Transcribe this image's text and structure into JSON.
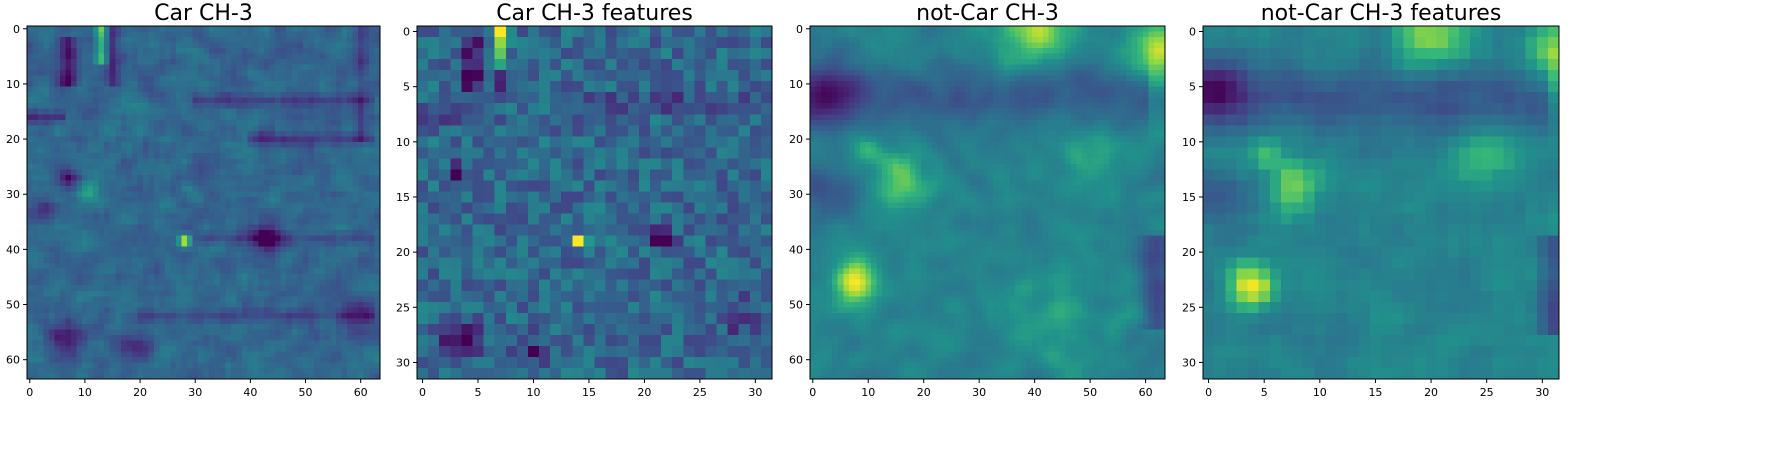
{
  "chart_data": [
    {
      "type": "heatmap",
      "title": "Car CH-3",
      "grid_size": 64,
      "xticks": [
        0,
        10,
        20,
        30,
        40,
        50,
        60
      ],
      "yticks": [
        0,
        10,
        20,
        30,
        40,
        50,
        60
      ],
      "xlim": [
        0,
        64
      ],
      "ylim": [
        64,
        0
      ],
      "colormap": "viridis",
      "seed": 11,
      "smooth": 1,
      "contrast": 1.0,
      "base": 0.42,
      "features": [
        {
          "kind": "vline",
          "x": 7,
          "y0": 2,
          "y1": 10,
          "w": 1.2,
          "v": -0.35
        },
        {
          "kind": "vline",
          "x": 13,
          "y0": 0,
          "y1": 6,
          "w": 0.8,
          "v": 0.35
        },
        {
          "kind": "vline",
          "x": 15,
          "y0": 0,
          "y1": 10,
          "w": 0.8,
          "v": -0.25
        },
        {
          "kind": "hline",
          "y": 13,
          "x0": 30,
          "x1": 62,
          "w": 0.8,
          "v": -0.2
        },
        {
          "kind": "hline",
          "y": 16,
          "x0": 0,
          "x1": 6,
          "w": 0.8,
          "v": -0.3
        },
        {
          "kind": "hline",
          "y": 20,
          "x0": 40,
          "x1": 62,
          "w": 0.8,
          "v": -0.2
        },
        {
          "kind": "hline",
          "y": 38,
          "x0": 30,
          "x1": 62,
          "w": 0.8,
          "v": -0.15
        },
        {
          "kind": "hline",
          "y": 52,
          "x0": 20,
          "x1": 62,
          "w": 0.8,
          "v": -0.15
        },
        {
          "kind": "vline",
          "x": 60,
          "y0": 0,
          "y1": 20,
          "w": 0.8,
          "v": -0.15
        },
        {
          "kind": "blob",
          "x": 7,
          "y": 27,
          "r": 1.2,
          "v": -0.45
        },
        {
          "kind": "blob",
          "x": 28,
          "y": 38.5,
          "r": 0.8,
          "v": 0.55
        },
        {
          "kind": "blob",
          "x": 43,
          "y": 38,
          "r": 2,
          "v": -0.4
        },
        {
          "kind": "blob",
          "x": 7,
          "y": 56,
          "r": 2.5,
          "v": -0.35
        },
        {
          "kind": "blob",
          "x": 3,
          "y": 33,
          "r": 1.5,
          "v": -0.25
        },
        {
          "kind": "blob",
          "x": 20,
          "y": 58,
          "r": 2,
          "v": -0.25
        },
        {
          "kind": "blob",
          "x": 11,
          "y": 30,
          "r": 1.5,
          "v": 0.25
        },
        {
          "kind": "blob",
          "x": 60,
          "y": 52,
          "r": 3,
          "v": -0.2
        }
      ]
    },
    {
      "type": "heatmap",
      "title": "Car CH-3 features",
      "grid_size": 32,
      "xticks": [
        0,
        5,
        10,
        15,
        20,
        25,
        30
      ],
      "yticks": [
        0,
        5,
        10,
        15,
        20,
        25,
        30
      ],
      "xlim": [
        0,
        32
      ],
      "ylim": [
        32,
        0
      ],
      "colormap": "viridis",
      "seed": 23,
      "smooth": 0,
      "contrast": 1.15,
      "base": 0.42,
      "features": [
        {
          "kind": "vline",
          "x": 4.5,
          "y0": 1,
          "y1": 5,
          "w": 0.6,
          "v": -0.4
        },
        {
          "kind": "vline",
          "x": 7,
          "y0": 0,
          "y1": 3,
          "w": 0.5,
          "v": 0.45
        },
        {
          "kind": "vline",
          "x": 7,
          "y0": 3,
          "y1": 6,
          "w": 0.5,
          "v": -0.25
        },
        {
          "kind": "hline",
          "y": 6.5,
          "x0": 14,
          "x1": 31,
          "w": 0.5,
          "v": -0.2
        },
        {
          "kind": "hline",
          "y": 8,
          "x0": 0,
          "x1": 3,
          "w": 0.5,
          "v": -0.3
        },
        {
          "kind": "blob",
          "x": 3,
          "y": 13,
          "r": 0.6,
          "v": -0.45
        },
        {
          "kind": "blob",
          "x": 14,
          "y": 19,
          "r": 0.5,
          "v": 0.6
        },
        {
          "kind": "blob",
          "x": 21.5,
          "y": 18.5,
          "r": 0.8,
          "v": -0.45
        },
        {
          "kind": "blob",
          "x": 3.5,
          "y": 28,
          "r": 1.2,
          "v": -0.45
        },
        {
          "kind": "blob",
          "x": 10,
          "y": 29,
          "r": 1,
          "v": -0.3
        },
        {
          "kind": "blob",
          "x": 2,
          "y": 8.5,
          "r": 0.5,
          "v": 0.35
        },
        {
          "kind": "blob",
          "x": 29,
          "y": 26,
          "r": 1.5,
          "v": -0.2
        }
      ]
    },
    {
      "type": "heatmap",
      "title": "not-Car CH-3",
      "grid_size": 64,
      "xticks": [
        0,
        10,
        20,
        30,
        40,
        50,
        60
      ],
      "yticks": [
        0,
        10,
        20,
        30,
        40,
        50,
        60
      ],
      "xlim": [
        0,
        64
      ],
      "ylim": [
        64,
        0
      ],
      "colormap": "viridis",
      "seed": 37,
      "smooth": 2,
      "contrast": 0.6,
      "base": 0.55,
      "features": [
        {
          "kind": "hline",
          "y": 12,
          "x0": 0,
          "x1": 60,
          "w": 4,
          "v": -0.2
        },
        {
          "kind": "blob",
          "x": 2,
          "y": 12,
          "r": 4,
          "v": -0.35
        },
        {
          "kind": "blob",
          "x": 2,
          "y": 30,
          "r": 4,
          "v": -0.2
        },
        {
          "kind": "blob",
          "x": 40,
          "y": 0,
          "r": 5,
          "v": 0.35
        },
        {
          "kind": "blob",
          "x": 62,
          "y": 4,
          "r": 4,
          "v": 0.35
        },
        {
          "kind": "blob",
          "x": 16,
          "y": 28,
          "r": 3.5,
          "v": 0.3
        },
        {
          "kind": "blob",
          "x": 8,
          "y": 46,
          "r": 3,
          "v": 0.4
        },
        {
          "kind": "blob",
          "x": 10,
          "y": 22,
          "r": 2,
          "v": 0.2
        },
        {
          "kind": "blob",
          "x": 50,
          "y": 23,
          "r": 4,
          "v": 0.18
        },
        {
          "kind": "vline",
          "x": 62,
          "y0": 38,
          "y1": 54,
          "w": 2,
          "v": -0.25
        },
        {
          "kind": "blob",
          "x": 45,
          "y": 52,
          "r": 6,
          "v": 0.12
        }
      ]
    },
    {
      "type": "heatmap",
      "title": "not-Car CH-3 features",
      "grid_size": 32,
      "xticks": [
        0,
        5,
        10,
        15,
        20,
        25,
        30
      ],
      "yticks": [
        0,
        5,
        10,
        15,
        20,
        25,
        30
      ],
      "xlim": [
        0,
        32
      ],
      "ylim": [
        32,
        0
      ],
      "colormap": "viridis",
      "seed": 41,
      "smooth": 1,
      "contrast": 0.7,
      "base": 0.55,
      "features": [
        {
          "kind": "hline",
          "y": 6,
          "x0": 0,
          "x1": 30,
          "w": 2,
          "v": -0.22
        },
        {
          "kind": "blob",
          "x": 0.5,
          "y": 5,
          "r": 2,
          "v": -0.35
        },
        {
          "kind": "blob",
          "x": 1,
          "y": 15,
          "r": 2,
          "v": -0.22
        },
        {
          "kind": "blob",
          "x": 20,
          "y": 0,
          "r": 2.5,
          "v": 0.35
        },
        {
          "kind": "blob",
          "x": 31,
          "y": 2,
          "r": 2,
          "v": 0.3
        },
        {
          "kind": "blob",
          "x": 8,
          "y": 14,
          "r": 1.8,
          "v": 0.3
        },
        {
          "kind": "blob",
          "x": 4,
          "y": 23,
          "r": 1.5,
          "v": 0.4
        },
        {
          "kind": "blob",
          "x": 5,
          "y": 11,
          "r": 1,
          "v": 0.2
        },
        {
          "kind": "blob",
          "x": 25,
          "y": 11.5,
          "r": 2,
          "v": 0.18
        },
        {
          "kind": "vline",
          "x": 31,
          "y0": 19,
          "y1": 27,
          "w": 1,
          "v": -0.25
        }
      ]
    }
  ]
}
